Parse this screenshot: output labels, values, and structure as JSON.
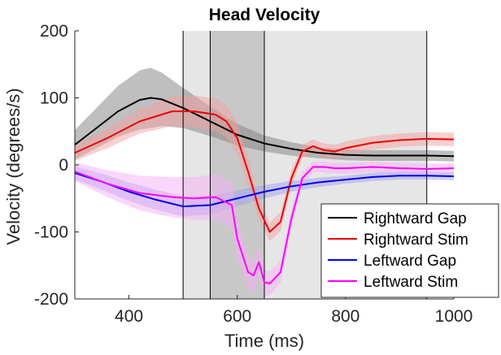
{
  "chart_data": {
    "type": "line",
    "title": "Head Velocity",
    "xlabel": "Time (ms)",
    "ylabel": "Velocity (degrees/s)",
    "xlim": [
      300,
      1000
    ],
    "ylim": [
      -200,
      200
    ],
    "x_ticks": [
      400,
      600,
      800,
      1000
    ],
    "y_ticks": [
      -200,
      -100,
      0,
      100,
      200
    ],
    "grid": false,
    "legend_position": "bottom-right",
    "shaded_windows": [
      {
        "x": [
          500,
          950
        ],
        "color": "#e6e6e6"
      },
      {
        "x": [
          550,
          650
        ],
        "color": "#c8c8c8"
      }
    ],
    "vertical_lines": [
      500,
      550,
      650,
      950
    ],
    "series": [
      {
        "name": "Rightward Gap",
        "color": "#000000",
        "band_color": "#808080",
        "x": [
          300,
          340,
          380,
          420,
          440,
          460,
          500,
          550,
          600,
          650,
          700,
          750,
          800,
          850,
          900,
          950,
          1000
        ],
        "y": [
          30,
          55,
          80,
          97,
          100,
          98,
          85,
          65,
          45,
          32,
          24,
          18,
          15,
          14,
          14,
          14,
          13
        ],
        "band": [
          22,
          30,
          38,
          44,
          45,
          40,
          30,
          22,
          16,
          12,
          10,
          8,
          8,
          8,
          8,
          8,
          8
        ]
      },
      {
        "name": "Rightward Stim",
        "color": "#ee0000",
        "band_color": "#f4a0a0",
        "x": [
          300,
          360,
          420,
          480,
          520,
          560,
          580,
          600,
          620,
          640,
          660,
          680,
          700,
          720,
          740,
          760,
          780,
          800,
          850,
          900,
          950,
          1000
        ],
        "y": [
          18,
          40,
          65,
          80,
          80,
          75,
          65,
          40,
          -10,
          -65,
          -100,
          -85,
          -20,
          20,
          28,
          22,
          20,
          25,
          33,
          37,
          39,
          38
        ],
        "band": [
          12,
          15,
          18,
          22,
          24,
          24,
          24,
          24,
          20,
          16,
          14,
          14,
          12,
          10,
          10,
          10,
          10,
          10,
          10,
          10,
          10,
          10
        ]
      },
      {
        "name": "Leftward Gap",
        "color": "#0000ee",
        "band_color": "#a0a0f4",
        "x": [
          300,
          350,
          400,
          450,
          500,
          550,
          600,
          650,
          700,
          750,
          800,
          850,
          900,
          950,
          1000
        ],
        "y": [
          -12,
          -25,
          -40,
          -52,
          -62,
          -60,
          -50,
          -40,
          -32,
          -26,
          -22,
          -18,
          -16,
          -16,
          -17
        ],
        "band": [
          10,
          12,
          14,
          15,
          15,
          14,
          12,
          10,
          8,
          7,
          6,
          6,
          6,
          6,
          6
        ]
      },
      {
        "name": "Leftward Stim",
        "color": "#ff00ff",
        "band_color": "#f6b0f6",
        "x": [
          300,
          360,
          420,
          480,
          520,
          560,
          590,
          600,
          620,
          630,
          640,
          650,
          660,
          680,
          700,
          720,
          740,
          760,
          780,
          800,
          850,
          900,
          950,
          1000
        ],
        "y": [
          -10,
          -28,
          -42,
          -48,
          -50,
          -48,
          -60,
          -110,
          -160,
          -165,
          -145,
          -175,
          -177,
          -160,
          -80,
          -20,
          -3,
          -3,
          -5,
          -5,
          -3,
          -5,
          -6,
          -5
        ],
        "band": [
          14,
          20,
          26,
          30,
          32,
          34,
          34,
          30,
          26,
          24,
          22,
          20,
          18,
          16,
          14,
          10,
          8,
          8,
          8,
          8,
          8,
          8,
          8,
          8
        ]
      }
    ]
  }
}
